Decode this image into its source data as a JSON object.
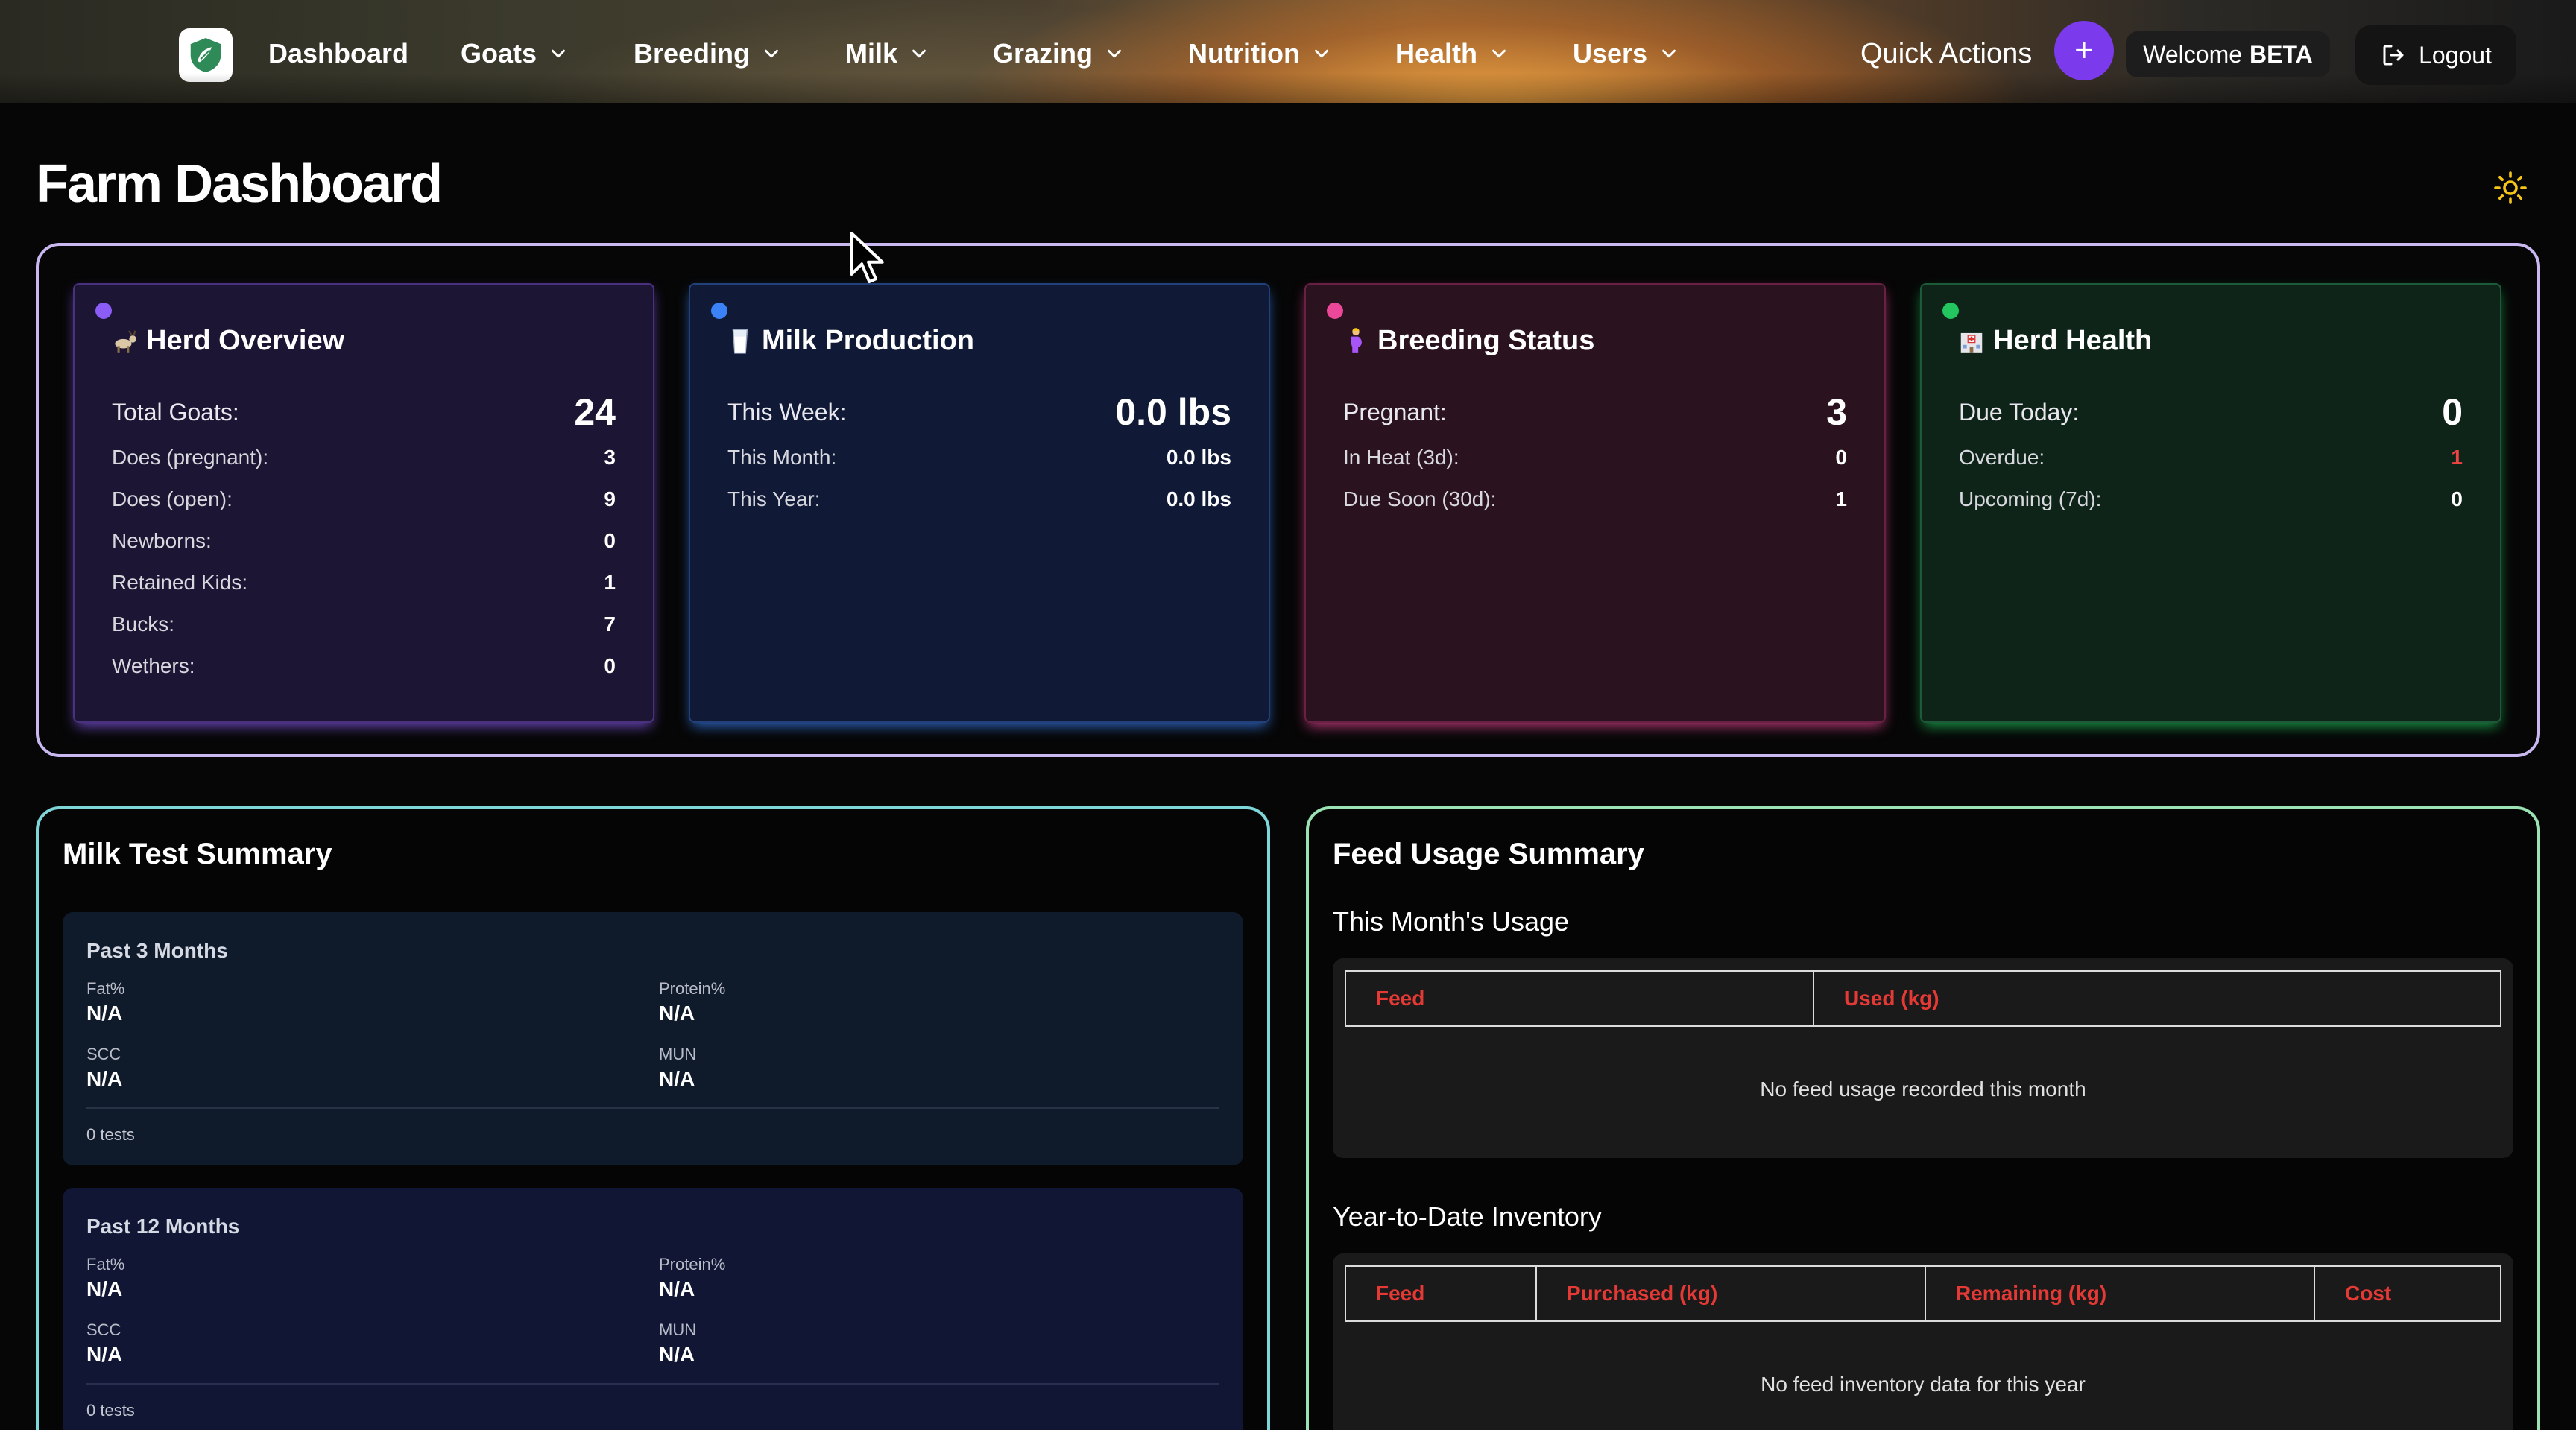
{
  "nav": {
    "items": [
      {
        "label": "Dashboard",
        "has_dropdown": false
      },
      {
        "label": "Goats",
        "has_dropdown": true
      },
      {
        "label": "Breeding",
        "has_dropdown": true
      },
      {
        "label": "Milk",
        "has_dropdown": true
      },
      {
        "label": "Grazing",
        "has_dropdown": true
      },
      {
        "label": "Nutrition",
        "has_dropdown": true
      },
      {
        "label": "Health",
        "has_dropdown": true
      },
      {
        "label": "Users",
        "has_dropdown": true
      }
    ],
    "quick_actions_label": "Quick Actions",
    "quick_actions_plus": "+",
    "welcome_prefix": "Welcome",
    "welcome_user": "BETA",
    "logout_label": "Logout",
    "accent_color": "#7c3aed"
  },
  "page": {
    "title": "Farm Dashboard"
  },
  "stats": {
    "herd": {
      "emoji": "goat",
      "title": "Herd Overview",
      "main_label": "Total Goats:",
      "main_value": "24",
      "rows": [
        {
          "label": "Does (pregnant):",
          "value": "3"
        },
        {
          "label": "Does (open):",
          "value": "9"
        },
        {
          "label": "Newborns:",
          "value": "0"
        },
        {
          "label": "Retained Kids:",
          "value": "1"
        },
        {
          "label": "Bucks:",
          "value": "7"
        },
        {
          "label": "Wethers:",
          "value": "0"
        }
      ],
      "color": "#8b5cf6"
    },
    "milk": {
      "emoji": "milk-glass",
      "title": "Milk Production",
      "main_label": "This Week:",
      "main_value": "0.0 lbs",
      "rows": [
        {
          "label": "This Month:",
          "value": "0.0 lbs"
        },
        {
          "label": "This Year:",
          "value": "0.0 lbs"
        }
      ],
      "color": "#3b82f6"
    },
    "breeding": {
      "emoji": "pregnant-woman",
      "title": "Breeding Status",
      "main_label": "Pregnant:",
      "main_value": "3",
      "rows": [
        {
          "label": "In Heat (3d):",
          "value": "0"
        },
        {
          "label": "Due Soon (30d):",
          "value": "1"
        }
      ],
      "color": "#ec4899"
    },
    "health": {
      "emoji": "hospital",
      "title": "Herd Health",
      "main_label": "Due Today:",
      "main_value": "0",
      "rows": [
        {
          "label": "Overdue:",
          "value": "1",
          "alert": true
        },
        {
          "label": "Upcoming (7d):",
          "value": "0"
        }
      ],
      "color": "#22c55e",
      "alert_color": "#ef4444"
    }
  },
  "milk_test": {
    "title": "Milk Test Summary",
    "periods": [
      {
        "heading": "Past 3 Months",
        "metrics": [
          {
            "label": "Fat%",
            "value": "N/A"
          },
          {
            "label": "Protein%",
            "value": "N/A"
          },
          {
            "label": "SCC",
            "value": "N/A"
          },
          {
            "label": "MUN",
            "value": "N/A"
          }
        ],
        "tests": "0 tests"
      },
      {
        "heading": "Past 12 Months",
        "metrics": [
          {
            "label": "Fat%",
            "value": "N/A"
          },
          {
            "label": "Protein%",
            "value": "N/A"
          },
          {
            "label": "SCC",
            "value": "N/A"
          },
          {
            "label": "MUN",
            "value": "N/A"
          }
        ],
        "tests": "0 tests"
      }
    ]
  },
  "feed": {
    "title": "Feed Usage Summary",
    "month": {
      "subtitle": "This Month's Usage",
      "columns": [
        "Feed",
        "Used (kg)"
      ],
      "empty": "No feed usage recorded this month"
    },
    "ytd": {
      "subtitle": "Year-to-Date Inventory",
      "columns": [
        "Feed",
        "Purchased (kg)",
        "Remaining (kg)",
        "Cost"
      ],
      "empty": "No feed inventory data for this year"
    },
    "header_color": "#e53935"
  }
}
